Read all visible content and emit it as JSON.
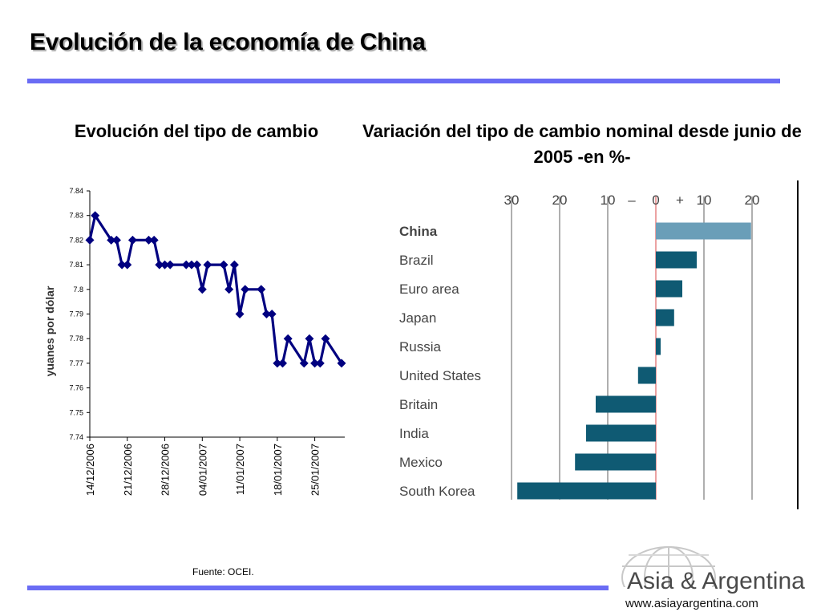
{
  "title": "Evolución de la economía de China",
  "source": "Fuente: OCEI.",
  "logo": {
    "name": "Asia & Argentina",
    "url": "www.asiayargentina.com"
  },
  "colors": {
    "accent_rule": "#6a6cf4",
    "line": "#000080",
    "bar_china": "#6a9eb8",
    "bar_other": "#0f5a73",
    "zero_line": "#e88a8a"
  },
  "chart_data": [
    {
      "type": "line",
      "title": "Evolución del tipo de cambio",
      "xlabel": "",
      "ylabel": "yuanes por dólar",
      "ylim": [
        7.74,
        7.84
      ],
      "yticks": [
        "7.84",
        "7.83",
        "7.82",
        "7.81",
        "7.8",
        "7.79",
        "7.78",
        "7.77",
        "7.76",
        "7.75",
        "7.74"
      ],
      "ytick_values": [
        7.84,
        7.83,
        7.82,
        7.81,
        7.8,
        7.79,
        7.78,
        7.77,
        7.76,
        7.75,
        7.74
      ],
      "xticks": [
        "14/12/2006",
        "21/12/2006",
        "28/12/2006",
        "04/01/2007",
        "11/01/2007",
        "18/01/2007",
        "25/01/2007"
      ],
      "xtick_index": [
        0,
        7,
        14,
        21,
        28,
        35,
        42
      ],
      "x_count": 48,
      "points": [
        {
          "x": 0,
          "y": 7.82
        },
        {
          "x": 1,
          "y": 7.83
        },
        {
          "x": 4,
          "y": 7.82
        },
        {
          "x": 5,
          "y": 7.82
        },
        {
          "x": 6,
          "y": 7.81
        },
        {
          "x": 7,
          "y": 7.81
        },
        {
          "x": 8,
          "y": 7.82
        },
        {
          "x": 11,
          "y": 7.82
        },
        {
          "x": 12,
          "y": 7.82
        },
        {
          "x": 13,
          "y": 7.81
        },
        {
          "x": 14,
          "y": 7.81
        },
        {
          "x": 15,
          "y": 7.81
        },
        {
          "x": 18,
          "y": 7.81
        },
        {
          "x": 19,
          "y": 7.81
        },
        {
          "x": 20,
          "y": 7.81
        },
        {
          "x": 21,
          "y": 7.8
        },
        {
          "x": 22,
          "y": 7.81
        },
        {
          "x": 25,
          "y": 7.81
        },
        {
          "x": 26,
          "y": 7.8
        },
        {
          "x": 27,
          "y": 7.81
        },
        {
          "x": 28,
          "y": 7.79
        },
        {
          "x": 29,
          "y": 7.8
        },
        {
          "x": 32,
          "y": 7.8
        },
        {
          "x": 33,
          "y": 7.79
        },
        {
          "x": 34,
          "y": 7.79
        },
        {
          "x": 35,
          "y": 7.77
        },
        {
          "x": 36,
          "y": 7.77
        },
        {
          "x": 37,
          "y": 7.78
        },
        {
          "x": 40,
          "y": 7.77
        },
        {
          "x": 41,
          "y": 7.78
        },
        {
          "x": 42,
          "y": 7.77
        },
        {
          "x": 43,
          "y": 7.77
        },
        {
          "x": 44,
          "y": 7.78
        },
        {
          "x": 47,
          "y": 7.77
        }
      ],
      "grid": false
    },
    {
      "type": "bar",
      "orientation": "horizontal",
      "title": "Variación del tipo de cambio nominal desde junio de 2005 -en %-",
      "xlim": [
        -30,
        20
      ],
      "xticks": [
        "30",
        "20",
        "10",
        "–",
        "0",
        "+",
        "10",
        "20"
      ],
      "categories": [
        "China",
        "Brazil",
        "Euro area",
        "Japan",
        "Russia",
        "United States",
        "Britain",
        "India",
        "Mexico",
        "South Korea"
      ],
      "values": [
        19.8,
        8.5,
        5.5,
        3.8,
        1.0,
        -3.7,
        -12.5,
        -14.5,
        -16.8,
        -28.8
      ],
      "grid": true
    }
  ]
}
